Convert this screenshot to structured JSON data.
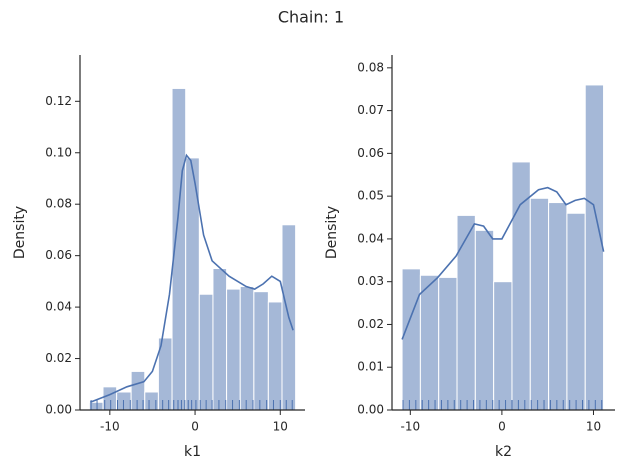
{
  "title": "Chain: 1",
  "chart_data": [
    {
      "type": "histogram",
      "xlabel": "k1",
      "ylabel": "Density",
      "bins": [
        -12.4,
        -10.8,
        -9.2,
        -7.5,
        -5.9,
        -4.3,
        -2.7,
        -1.1,
        0.5,
        2.1,
        3.7,
        5.3,
        6.9,
        8.6,
        10.2,
        11.8
      ],
      "values": [
        0.003,
        0.009,
        0.007,
        0.015,
        0.007,
        0.028,
        0.125,
        0.098,
        0.045,
        0.055,
        0.047,
        0.048,
        0.046,
        0.042,
        0.072
      ],
      "color": "#a5b8d7",
      "line_color": "#4c72b0",
      "kde": {
        "x": [
          -12.3,
          -10,
          -8,
          -6,
          -5,
          -4,
          -3,
          -2,
          -1.5,
          -1,
          -0.5,
          0,
          1,
          2,
          4,
          6,
          7,
          8,
          9,
          10,
          11,
          11.5
        ],
        "y": [
          0.003,
          0.006,
          0.009,
          0.011,
          0.015,
          0.025,
          0.045,
          0.075,
          0.093,
          0.099,
          0.097,
          0.088,
          0.068,
          0.058,
          0.052,
          0.048,
          0.047,
          0.049,
          0.052,
          0.05,
          0.036,
          0.031
        ]
      },
      "rug": [
        -12.2,
        -11.5,
        -10.6,
        -9.9,
        -9.1,
        -8.4,
        -7.6,
        -6.8,
        -6.1,
        -5.4,
        -4.6,
        -3.8,
        -3.1,
        -2.5,
        -2.0,
        -1.6,
        -1.2,
        -0.8,
        -0.4,
        0.1,
        0.6,
        1.3,
        2.0,
        2.8,
        3.6,
        4.4,
        5.2,
        6.0,
        6.8,
        7.6,
        8.4,
        9.2,
        10.0,
        10.7,
        11.4
      ],
      "xlim": [
        -13.5,
        12.9
      ],
      "ylim": [
        0,
        0.138
      ],
      "xticks": [
        -10,
        0,
        10
      ],
      "yticks": [
        {
          "value": 0,
          "label": "0.00"
        },
        {
          "value": 0.02,
          "label": "0.02"
        },
        {
          "value": 0.04,
          "label": "0.04"
        },
        {
          "value": 0.06,
          "label": "0.06"
        },
        {
          "value": 0.08,
          "label": "0.08"
        },
        {
          "value": 0.1,
          "label": "0.10"
        },
        {
          "value": 0.12,
          "label": "0.12"
        }
      ]
    },
    {
      "type": "histogram",
      "xlabel": "k2",
      "ylabel": "Density",
      "bins": [
        -10.9,
        -8.9,
        -6.9,
        -4.9,
        -2.9,
        -0.9,
        1.1,
        3.1,
        5.1,
        7.1,
        9.1,
        11.1
      ],
      "values": [
        0.033,
        0.0315,
        0.031,
        0.0455,
        0.042,
        0.03,
        0.058,
        0.0495,
        0.0485,
        0.046,
        0.076
      ],
      "color": "#a5b8d7",
      "line_color": "#4c72b0",
      "kde": {
        "x": [
          -10.9,
          -9,
          -7,
          -5,
          -3,
          -2,
          -1,
          0,
          1,
          2,
          4,
          5,
          6,
          7,
          8,
          9,
          10,
          11.1
        ],
        "y": [
          0.0165,
          0.027,
          0.031,
          0.036,
          0.0435,
          0.043,
          0.04,
          0.04,
          0.044,
          0.048,
          0.0515,
          0.052,
          0.051,
          0.048,
          0.049,
          0.0495,
          0.048,
          0.037
        ]
      },
      "rug": [
        -10.8,
        -10.1,
        -9.4,
        -8.7,
        -8.0,
        -7.3,
        -6.6,
        -5.9,
        -5.2,
        -4.5,
        -3.8,
        -3.1,
        -2.4,
        -1.7,
        -1.0,
        -0.3,
        0.4,
        1.1,
        1.8,
        2.5,
        3.2,
        3.9,
        4.6,
        5.3,
        6.0,
        6.7,
        7.4,
        8.1,
        8.8,
        9.5,
        10.2,
        10.9
      ],
      "xlim": [
        -12.0,
        12.35
      ],
      "ylim": [
        0,
        0.083
      ],
      "xticks": [
        -10,
        0,
        10
      ],
      "yticks": [
        {
          "value": 0,
          "label": "0.00"
        },
        {
          "value": 0.01,
          "label": "0.01"
        },
        {
          "value": 0.02,
          "label": "0.02"
        },
        {
          "value": 0.03,
          "label": "0.03"
        },
        {
          "value": 0.04,
          "label": "0.04"
        },
        {
          "value": 0.05,
          "label": "0.05"
        },
        {
          "value": 0.06,
          "label": "0.06"
        },
        {
          "value": 0.07,
          "label": "0.07"
        },
        {
          "value": 0.08,
          "label": "0.08"
        }
      ]
    }
  ]
}
